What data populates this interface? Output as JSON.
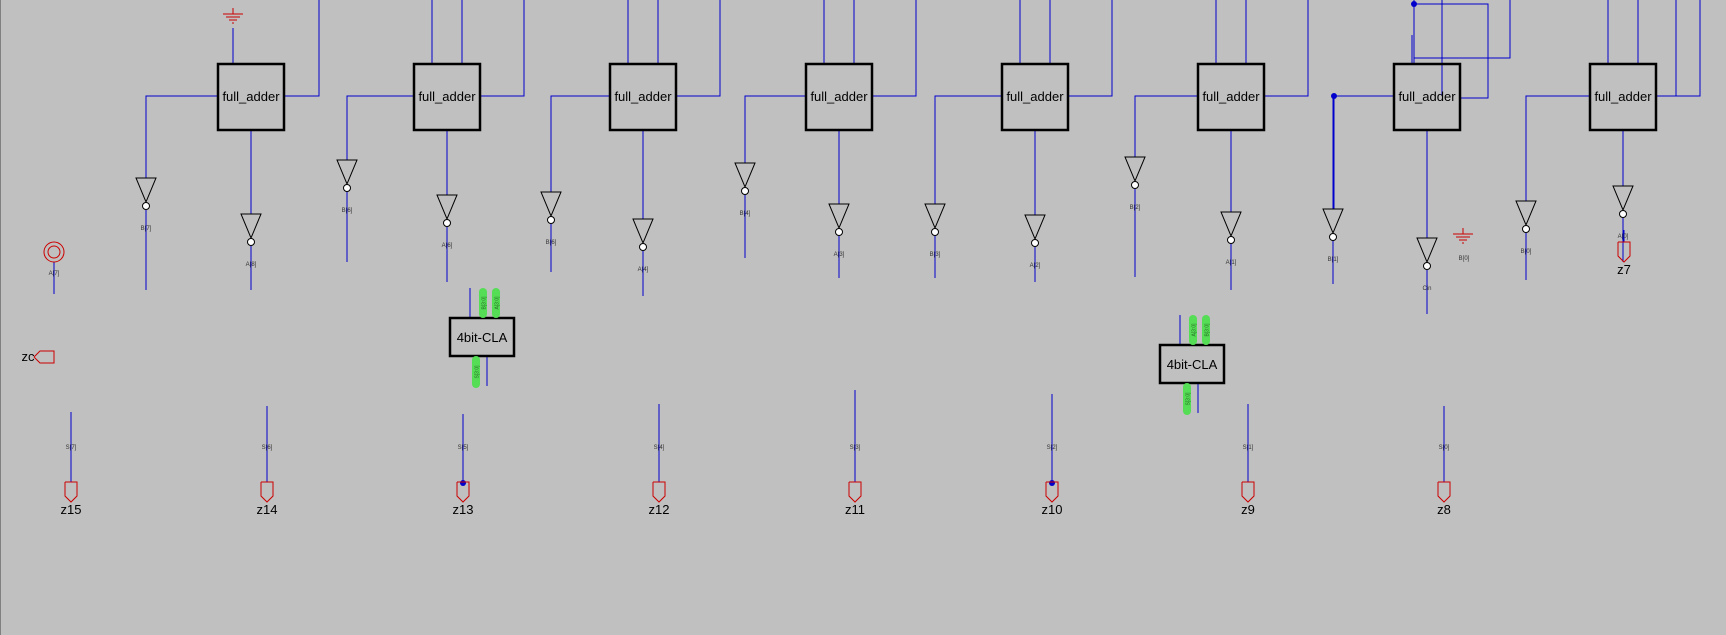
{
  "colors": {
    "background": "#c0c0c0",
    "wire": "#0000cc",
    "block_border": "#000000",
    "port_red": "#cc0000",
    "bus_label_green": "#55dd55"
  },
  "blocks": {
    "full_adder_label": "full_adder",
    "cla_label": "4bit-CLA"
  },
  "adders": [
    {
      "b_label": "B[7]",
      "a_label": "A[8]"
    },
    {
      "b_label": "B[6]",
      "a_label": "A[6]"
    },
    {
      "b_label": "B[6]",
      "a_label": "A[4]"
    },
    {
      "b_label": "B[4]",
      "a_label": "A[3]"
    },
    {
      "b_label": "B[3]",
      "a_label": "A[2]"
    },
    {
      "b_label": "B[2]",
      "a_label": "A[1]"
    },
    {
      "b_label": "B[1]",
      "a_label": "Cin"
    },
    {
      "b_label": "B[0]",
      "a_label": "A[0]"
    }
  ],
  "left_input_label": "A[7]",
  "outputs": [
    {
      "name": "z15",
      "net": "S[7]"
    },
    {
      "name": "z14",
      "net": "S[6]"
    },
    {
      "name": "z13",
      "net": "S[5]"
    },
    {
      "name": "z12",
      "net": "S[4]"
    },
    {
      "name": "z11",
      "net": "S[3]"
    },
    {
      "name": "z10",
      "net": "S[2]"
    },
    {
      "name": "z9",
      "net": "S[1]"
    },
    {
      "name": "z8",
      "net": "S[0]"
    }
  ],
  "extra_ports": {
    "zc": "zc",
    "z7": "z7"
  },
  "cla_pins": {
    "cla1_top": [
      "Cin",
      "B[3:0]",
      "A[3:0]"
    ],
    "cla1_bottom": [
      "S[3:0]",
      "C"
    ],
    "cla2_top": [
      "Cin",
      "A[3:0]",
      "B[3:0]"
    ],
    "cla2_bottom": [
      "S[3:0]",
      "C_out"
    ]
  }
}
